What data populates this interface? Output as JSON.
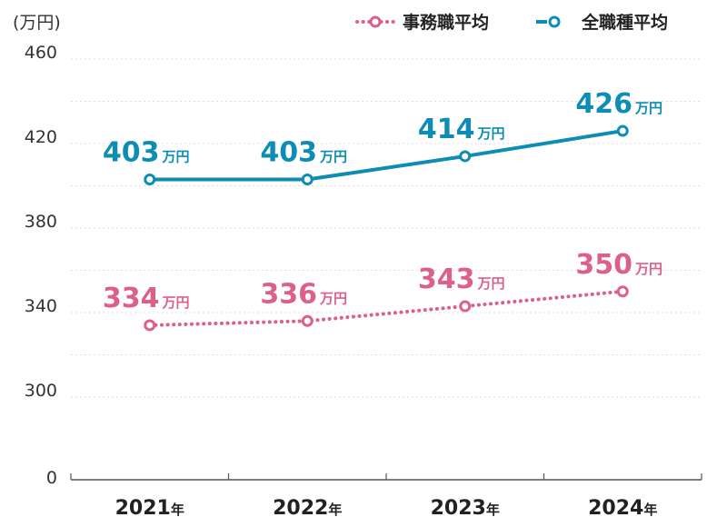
{
  "chart_data": {
    "type": "line",
    "unit_label": "(万円)",
    "categories": [
      "2021",
      "2022",
      "2023",
      "2024"
    ],
    "category_suffix": "年",
    "value_suffix": "万円",
    "yticks": [
      460,
      420,
      380,
      340,
      300,
      0
    ],
    "ylim": [
      300,
      460
    ],
    "axis_break": true,
    "grid": true,
    "legend_position": "top-right",
    "series": [
      {
        "name": "事務職平均",
        "color": "#dd5f8c",
        "style": "dotted",
        "values": [
          334,
          336,
          343,
          350
        ]
      },
      {
        "name": "全職種平均",
        "color": "#0d8db5",
        "style": "solid",
        "values": [
          403,
          403,
          414,
          426
        ]
      }
    ]
  }
}
